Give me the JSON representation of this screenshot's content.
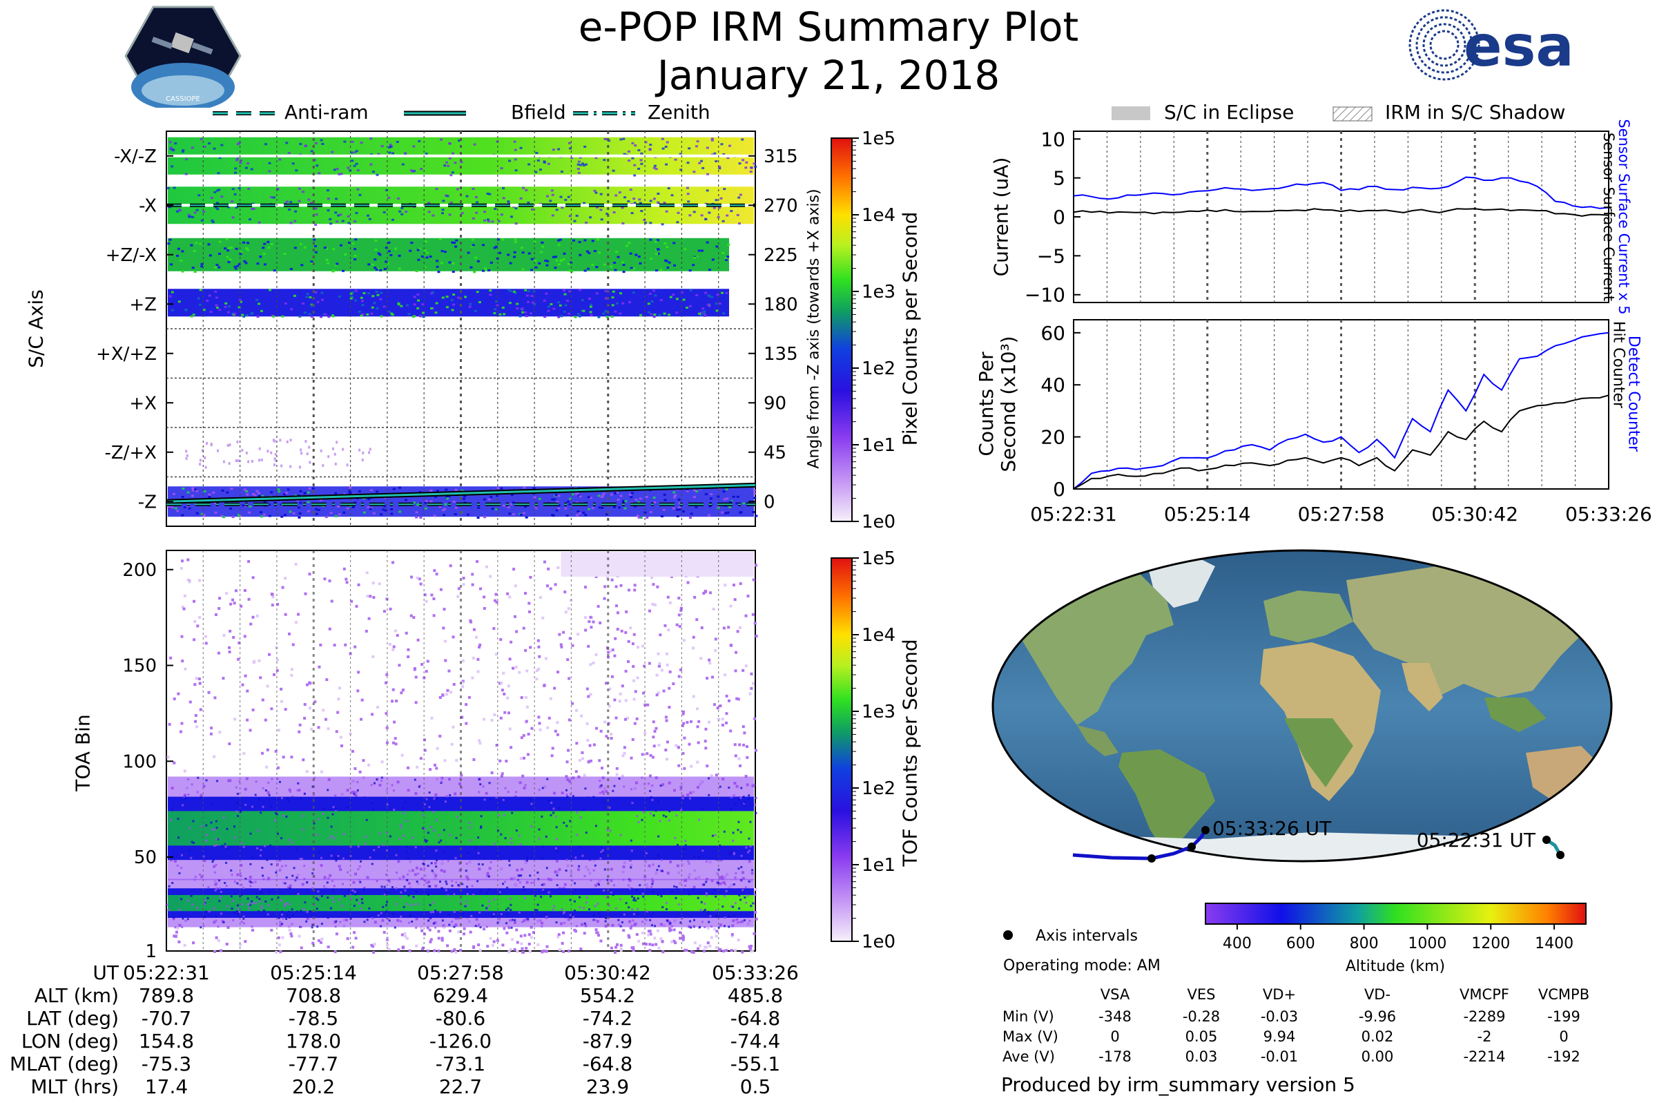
{
  "header": {
    "title": "e-POP IRM Summary Plot",
    "date": "January 21, 2018",
    "logo_left": "CASSIOPE",
    "logo_right": "esa"
  },
  "legend_top_left": {
    "items": [
      "Anti-ram",
      "Bfield",
      "Zenith"
    ]
  },
  "legend_top_right": {
    "items": [
      "S/C in Eclipse",
      "IRM in S/C Shadow"
    ]
  },
  "colors": {
    "cmap": [
      "#f4eefa",
      "#b070f0",
      "#7a2cf0",
      "#1010e8",
      "#1060c0",
      "#10b040",
      "#30e020",
      "#d8f020",
      "#ffd000",
      "#ff6000",
      "#e01010"
    ],
    "blue_line": "#0000ff",
    "black_line": "#000000",
    "teal": "#20c0b0",
    "ocean": "#3f70a0",
    "land": "#8aa86a"
  },
  "chart_data": [
    {
      "id": "sc_axis",
      "type": "heatmap",
      "ylabel": "S/C Axis",
      "ylabel_right": "Angle from -Z axis (towards +X axis)",
      "y_tick_labels": [
        "-X/-Z",
        "-X",
        "+Z/-X",
        "+Z",
        "+X/+Z",
        "+X",
        "-Z/+X",
        "-Z"
      ],
      "y_right_ticks": [
        "315",
        "270",
        "225",
        "180",
        "135",
        "90",
        "45",
        "0"
      ],
      "ylim": [
        -22.5,
        337.5
      ],
      "lines": {
        "anti_ram_deg": 270,
        "bfield_deg_start": 0,
        "bfield_deg_end": 15,
        "zenith_deg": 0
      },
      "colorbar": {
        "label": "Pixel Counts per Second",
        "ticks": [
          "1e5",
          "1e4",
          "1e3",
          "1e2",
          "1e1",
          "1e0"
        ]
      }
    },
    {
      "id": "toa",
      "type": "heatmap",
      "ylabel": "TOA Bin",
      "y_ticks": [
        "200",
        "150",
        "100",
        "50",
        "1"
      ],
      "ylim": [
        1,
        210
      ],
      "bands": [
        {
          "center": 65,
          "width": 30
        },
        {
          "center": 26,
          "width": 14
        }
      ],
      "colorbar": {
        "label": "TOF Counts per Second",
        "ticks": [
          "1e5",
          "1e4",
          "1e3",
          "1e2",
          "1e1",
          "1e0"
        ]
      }
    },
    {
      "id": "current",
      "type": "line",
      "ylabel": "Current (uA)",
      "ylim": [
        -11,
        11
      ],
      "y_ticks": [
        "10",
        "5",
        "0",
        "−5",
        "−10"
      ],
      "right_labels": [
        "Sensor Surface Current x 5",
        "Sensor Surface Current"
      ],
      "series": [
        {
          "name": "Sensor Surface Current x 5",
          "color": "blue",
          "values": [
            2.7,
            2.6,
            2.3,
            2.8,
            2.9,
            3.0,
            2.9,
            3.3,
            3.5,
            3.6,
            3.4,
            3.6,
            3.9,
            4.1,
            4.4,
            3.4,
            3.5,
            3.9,
            3.5,
            3.8,
            3.6,
            3.9,
            5.1,
            4.7,
            5.0,
            4.6,
            3.9,
            2.0,
            1.4,
            1.3,
            1.2
          ]
        },
        {
          "name": "Sensor Surface Current",
          "color": "black",
          "values": [
            0.6,
            0.6,
            0.5,
            0.6,
            0.6,
            0.6,
            0.6,
            0.7,
            0.7,
            0.7,
            0.7,
            0.7,
            0.8,
            0.8,
            0.9,
            0.7,
            0.7,
            0.8,
            0.7,
            0.8,
            0.7,
            0.8,
            1.0,
            0.9,
            1.0,
            0.9,
            0.8,
            0.4,
            0.3,
            0.3,
            0.2
          ]
        }
      ]
    },
    {
      "id": "counts",
      "type": "line",
      "ylabel": "Counts Per Second (x10³)",
      "ylabel_lines": [
        "Counts Per",
        "Second (x10³)"
      ],
      "ylim": [
        0,
        65
      ],
      "y_ticks": [
        "60",
        "40",
        "20",
        "0"
      ],
      "x_ticks": [
        "05:22:31",
        "05:25:14",
        "05:27:58",
        "05:30:42",
        "05:33:26"
      ],
      "right_labels": [
        "Detect Counter",
        "Hit Counter"
      ],
      "series": [
        {
          "name": "Detect Counter",
          "color": "blue",
          "values": [
            0,
            6,
            7,
            8,
            8,
            9,
            12,
            12,
            13,
            15,
            17,
            15,
            19,
            21,
            18,
            20,
            14,
            19,
            12,
            27,
            22,
            38,
            30,
            44,
            38,
            50,
            51,
            55,
            57,
            59,
            60
          ]
        },
        {
          "name": "Hit Counter",
          "color": "black",
          "values": [
            0,
            4,
            5,
            5,
            5,
            6,
            8,
            7,
            8,
            9,
            10,
            9,
            11,
            12,
            10,
            12,
            9,
            12,
            7,
            15,
            13,
            22,
            19,
            26,
            22,
            30,
            32,
            33,
            34,
            35,
            36
          ]
        }
      ]
    }
  ],
  "map": {
    "label_end": "05:33:26 UT",
    "label_start": "05:22:31 UT",
    "axis_intervals": "Axis intervals",
    "operating_mode": "Operating mode: AM",
    "altitude_label": "Altitude (km)",
    "altitude_ticks": [
      "400",
      "600",
      "800",
      "1000",
      "1200",
      "1400"
    ],
    "altitude_range": [
      300,
      1500
    ]
  },
  "voltage_table": {
    "headers": [
      "VSA",
      "VES",
      "VD+",
      "VD-",
      "VMCPF",
      "VCMPB"
    ],
    "rows": [
      {
        "label": "Min (V)",
        "values": [
          "-348",
          "-0.28",
          "-0.03",
          "-9.96",
          "-2289",
          "-199"
        ]
      },
      {
        "label": "Max (V)",
        "values": [
          "0",
          "0.05",
          "9.94",
          "0.02",
          "-2",
          "0"
        ]
      },
      {
        "label": "Ave (V)",
        "values": [
          "-178",
          "0.03",
          "-0.01",
          "0.00",
          "-2214",
          "-192"
        ]
      }
    ]
  },
  "footer": "Produced by irm_summary version 5",
  "ephemeris": {
    "labels": [
      "UT",
      "ALT (km)",
      "LAT (deg)",
      "LON (deg)",
      "MLAT (deg)",
      "MLT (hrs)"
    ],
    "columns": [
      [
        "05:22:31",
        "789.8",
        "-70.7",
        "154.8",
        "-75.3",
        "17.4"
      ],
      [
        "05:25:14",
        "708.8",
        "-78.5",
        "178.0",
        "-77.7",
        "20.2"
      ],
      [
        "05:27:58",
        "629.4",
        "-80.6",
        "-126.0",
        "-73.1",
        "22.7"
      ],
      [
        "05:30:42",
        "554.2",
        "-74.2",
        "-87.9",
        "-64.8",
        "23.9"
      ],
      [
        "05:33:26",
        "485.8",
        "-64.8",
        "-74.4",
        "-55.1",
        "0.5"
      ]
    ]
  }
}
